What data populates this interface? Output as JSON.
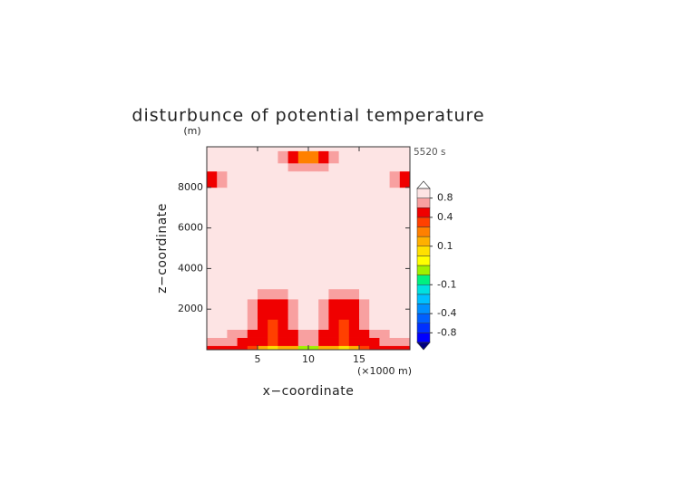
{
  "chart_data": {
    "type": "contour",
    "title": "disturbunce of potential temperature",
    "time_label": "5520 s",
    "y_unit": "(m)",
    "x_unit": "(×1000 m)",
    "x_label": "x−coordinate",
    "y_label": "z−coordinate",
    "xlim": [
      0,
      20
    ],
    "ylim": [
      0,
      10000
    ],
    "xticks": [
      5,
      10,
      15
    ],
    "yticks": [
      2000,
      4000,
      6000,
      8000
    ],
    "x_edges": [
      0,
      1,
      2,
      3,
      4,
      5,
      6,
      7,
      8,
      9,
      10,
      11,
      12,
      13,
      14,
      15,
      16,
      17,
      18,
      19,
      20
    ],
    "z_edges": [
      0,
      200,
      600,
      1000,
      1500,
      2000,
      2500,
      3000,
      8000,
      8800,
      9200,
      9800,
      10000
    ],
    "z": [
      [
        0.45,
        0.45,
        0.45,
        0.4,
        0.35,
        0.15,
        0.05,
        0.1,
        0.15,
        -0.03,
        -0.03,
        0.15,
        0.1,
        0.05,
        0.15,
        0.35,
        0.4,
        0.45,
        0.45,
        0.45
      ],
      [
        0.7,
        0.7,
        0.6,
        0.5,
        0.5,
        0.45,
        0.3,
        0.45,
        0.5,
        0.7,
        0.7,
        0.5,
        0.45,
        0.3,
        0.45,
        0.5,
        0.5,
        0.6,
        0.7,
        0.7
      ],
      [
        0.9,
        0.9,
        0.7,
        0.7,
        0.5,
        0.45,
        0.35,
        0.45,
        0.5,
        0.7,
        0.7,
        0.5,
        0.45,
        0.35,
        0.45,
        0.5,
        0.7,
        0.7,
        0.9,
        0.9
      ],
      [
        0.9,
        0.9,
        0.9,
        0.9,
        0.7,
        0.5,
        0.35,
        0.5,
        0.7,
        0.9,
        0.9,
        0.7,
        0.5,
        0.35,
        0.5,
        0.7,
        0.9,
        0.9,
        0.9,
        0.9
      ],
      [
        0.9,
        0.9,
        0.9,
        0.9,
        0.7,
        0.5,
        0.45,
        0.5,
        0.7,
        0.9,
        0.9,
        0.7,
        0.5,
        0.45,
        0.5,
        0.7,
        0.9,
        0.9,
        0.9,
        0.9
      ],
      [
        0.9,
        0.9,
        0.9,
        0.9,
        0.7,
        0.5,
        0.5,
        0.5,
        0.7,
        0.9,
        0.9,
        0.7,
        0.5,
        0.5,
        0.5,
        0.7,
        0.9,
        0.9,
        0.9,
        0.9
      ],
      [
        0.9,
        0.9,
        0.9,
        0.9,
        0.9,
        0.7,
        0.7,
        0.7,
        0.9,
        0.9,
        0.9,
        0.9,
        0.7,
        0.7,
        0.7,
        0.9,
        0.9,
        0.9,
        0.9,
        0.9
      ],
      [
        0.9,
        0.9,
        0.9,
        0.9,
        0.9,
        0.9,
        0.9,
        0.9,
        0.9,
        0.9,
        0.9,
        0.9,
        0.9,
        0.9,
        0.9,
        0.9,
        0.9,
        0.9,
        0.9,
        0.9
      ],
      [
        0.5,
        0.7,
        0.9,
        0.9,
        0.9,
        0.9,
        0.9,
        0.9,
        0.9,
        0.9,
        0.9,
        0.9,
        0.9,
        0.9,
        0.9,
        0.9,
        0.9,
        0.9,
        0.7,
        0.5
      ],
      [
        0.9,
        0.9,
        0.9,
        0.9,
        0.9,
        0.9,
        0.9,
        0.9,
        0.7,
        0.7,
        0.7,
        0.7,
        0.9,
        0.9,
        0.9,
        0.9,
        0.9,
        0.9,
        0.9,
        0.9
      ],
      [
        0.9,
        0.9,
        0.9,
        0.9,
        0.9,
        0.9,
        0.9,
        0.7,
        0.5,
        0.2,
        0.2,
        0.5,
        0.7,
        0.9,
        0.9,
        0.9,
        0.9,
        0.9,
        0.9,
        0.9
      ],
      [
        0.9,
        0.9,
        0.9,
        0.9,
        0.9,
        0.9,
        0.9,
        0.9,
        0.9,
        0.9,
        0.9,
        0.9,
        0.9,
        0.9,
        0.9,
        0.9,
        0.9,
        0.9,
        0.9,
        0.9
      ]
    ],
    "colorbar": {
      "levels": [
        -1,
        -0.8,
        -0.6,
        -0.4,
        -0.3,
        -0.2,
        -0.1,
        -0.05,
        0,
        0.05,
        0.1,
        0.2,
        0.3,
        0.4,
        0.6,
        0.8,
        1
      ],
      "colors": [
        "#0000ff",
        "#0030ff",
        "#0060ff",
        "#0090ff",
        "#00c0ff",
        "#00e0e0",
        "#00f080",
        "#a0f000",
        "#ffff00",
        "#ffe000",
        "#ffb000",
        "#ff8000",
        "#ff4000",
        "#f00000",
        "#f8a0a0",
        "#fde4e4"
      ],
      "under_color": "#000080",
      "over_color": "#ffffff",
      "ticks": [
        0.8,
        0.4,
        0.1,
        -0.1,
        -0.4,
        -0.8
      ]
    }
  }
}
